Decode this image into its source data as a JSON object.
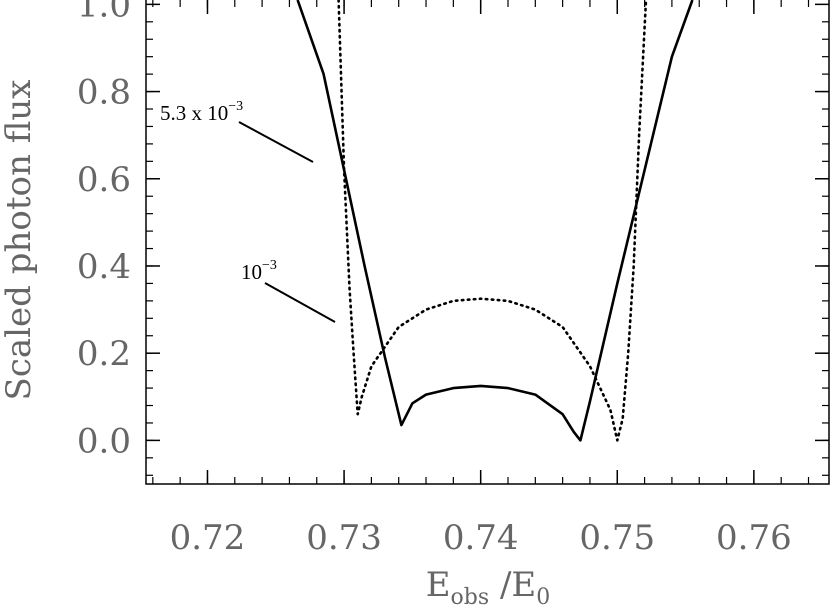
{
  "chart_data": {
    "type": "line",
    "title": "",
    "xlabel": {
      "main": "E",
      "sub": "obs",
      "mid": " /E",
      "sub2": "0"
    },
    "ylabel": "Scaled photon flux",
    "xlim": [
      0.7155,
      0.7655
    ],
    "ylim": [
      -0.1,
      1.01
    ],
    "xticks": [
      "0.72",
      "0.73",
      "0.74",
      "0.75",
      "0.76"
    ],
    "xtick_values": [
      0.72,
      0.73,
      0.74,
      0.75,
      0.76
    ],
    "yticks": [
      "0.0",
      "0.2",
      "0.4",
      "0.6",
      "0.8",
      "1.0"
    ],
    "ytick_values": [
      0.0,
      0.2,
      0.4,
      0.6,
      0.8,
      1.0
    ],
    "grid": false,
    "series": [
      {
        "style": "solid",
        "x": [
          0.7266,
          0.7285,
          0.73,
          0.7315,
          0.733,
          0.7342,
          0.735,
          0.736,
          0.738,
          0.74,
          0.742,
          0.744,
          0.746,
          0.7468,
          0.7473,
          0.748,
          0.75,
          0.752,
          0.754,
          0.7555
        ],
        "y": [
          1.01,
          0.84,
          0.62,
          0.4,
          0.19,
          0.035,
          0.085,
          0.105,
          0.12,
          0.125,
          0.12,
          0.105,
          0.06,
          0.02,
          0.0,
          0.09,
          0.36,
          0.62,
          0.88,
          1.01
        ]
      },
      {
        "style": "dotted",
        "x": [
          0.7296,
          0.73,
          0.7304,
          0.7307,
          0.731,
          0.7313,
          0.732,
          0.734,
          0.736,
          0.738,
          0.74,
          0.742,
          0.744,
          0.746,
          0.748,
          0.7495,
          0.75,
          0.7504,
          0.7508,
          0.7512,
          0.7516,
          0.7521
        ],
        "y": [
          1.01,
          0.62,
          0.35,
          0.2,
          0.06,
          0.1,
          0.17,
          0.26,
          0.3,
          0.32,
          0.325,
          0.32,
          0.3,
          0.26,
          0.17,
          0.07,
          0.0,
          0.05,
          0.2,
          0.4,
          0.7,
          1.01
        ]
      }
    ],
    "annotations": [
      {
        "text": "5.3 x 10",
        "sup": "−3",
        "x": 0.7312,
        "y": 0.63
      },
      {
        "text": "10",
        "sup": "−3",
        "x": 0.7302,
        "y": 0.27
      }
    ]
  }
}
